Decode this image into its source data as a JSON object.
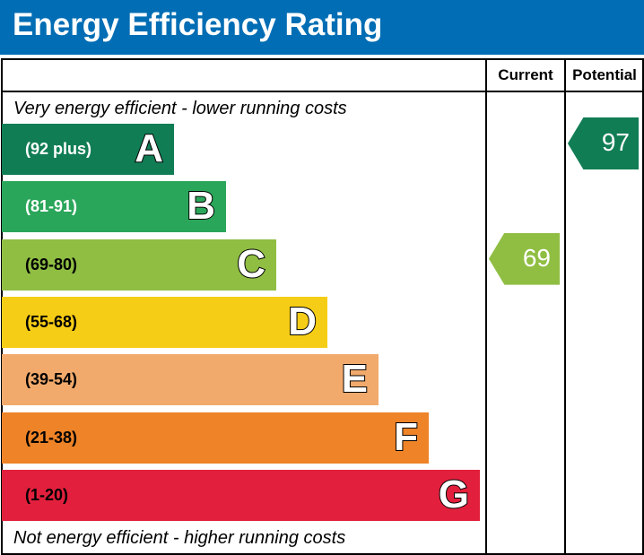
{
  "chart_data": {
    "type": "bar",
    "title": "Energy Efficiency Rating",
    "columns": [
      "Current",
      "Potential"
    ],
    "top_note": "Very energy efficient - lower running costs",
    "bottom_note": "Not energy efficient - higher running costs",
    "bands": [
      {
        "letter": "A",
        "range": "(92 plus)",
        "color": "#117d55"
      },
      {
        "letter": "B",
        "range": "(81-91)",
        "color": "#2aa65a"
      },
      {
        "letter": "C",
        "range": "(69-80)",
        "color": "#8fbe43"
      },
      {
        "letter": "D",
        "range": "(55-68)",
        "color": "#f6cd16"
      },
      {
        "letter": "E",
        "range": "(39-54)",
        "color": "#f2aa6c"
      },
      {
        "letter": "F",
        "range": "(21-38)",
        "color": "#ee8327"
      },
      {
        "letter": "G",
        "range": "(1-20)",
        "color": "#e2203d"
      }
    ],
    "current": {
      "value": "69",
      "band": "C",
      "color": "#8fbe43"
    },
    "potential": {
      "value": "97",
      "band": "A",
      "color": "#117d55"
    }
  }
}
